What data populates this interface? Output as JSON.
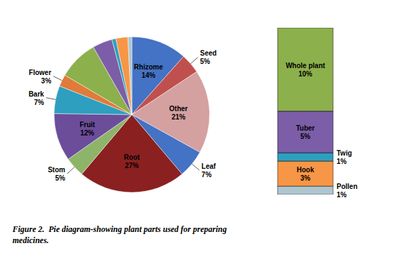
{
  "chart_data": [
    {
      "type": "pie",
      "title": "Figure 2.  Pie diagram-showing plant parts used for preparing\nmedicines.",
      "categories": [
        "Rhizome",
        "Seed",
        "Other",
        "Leaf",
        "Root",
        "Stom",
        "Fruit",
        "Bark",
        "Flower",
        null,
        null,
        null,
        null,
        null
      ],
      "values": [
        14,
        5,
        21,
        7,
        27,
        5,
        12,
        7,
        3,
        10,
        5,
        1,
        3,
        1
      ],
      "value_labels": [
        "14%",
        "5%",
        "21%",
        "7%",
        "27%",
        "5%",
        "12%",
        "7%",
        "3%",
        null,
        null,
        null,
        null,
        null
      ],
      "colors": [
        "#4472C4",
        "#C0504D",
        "#D4A0A0",
        "#4472C4",
        "#8B2020",
        "#8DB468",
        "#6B4D9A",
        "#2E9FBF",
        "#E07B39",
        "#8CB04C",
        "#7B5EA7",
        "#2E9FBF",
        "#F79646",
        "#AEC6CF"
      ],
      "data_labels": true
    },
    {
      "type": "bar",
      "stacked": true,
      "categories": [
        null
      ],
      "series": [
        {
          "name": "Pollen",
          "color": "#AEC6CF",
          "values": [
            1
          ],
          "value_labels": [
            "1%"
          ]
        },
        {
          "name": "Hook",
          "color": "#F79646",
          "values": [
            3
          ],
          "value_labels": [
            "3%"
          ]
        },
        {
          "name": "Twig",
          "color": "#2E9FBF",
          "values": [
            1
          ],
          "value_labels": [
            "1%"
          ]
        },
        {
          "name": "Tuber",
          "color": "#7B5EA7",
          "values": [
            5
          ],
          "value_labels": [
            "5%"
          ]
        },
        {
          "name": "Whole plant",
          "color": "#8CB04C",
          "values": [
            10
          ],
          "value_labels": [
            "10%"
          ]
        }
      ],
      "ylim": [
        0,
        20
      ],
      "tick_labels": false,
      "data_labels": true
    }
  ]
}
